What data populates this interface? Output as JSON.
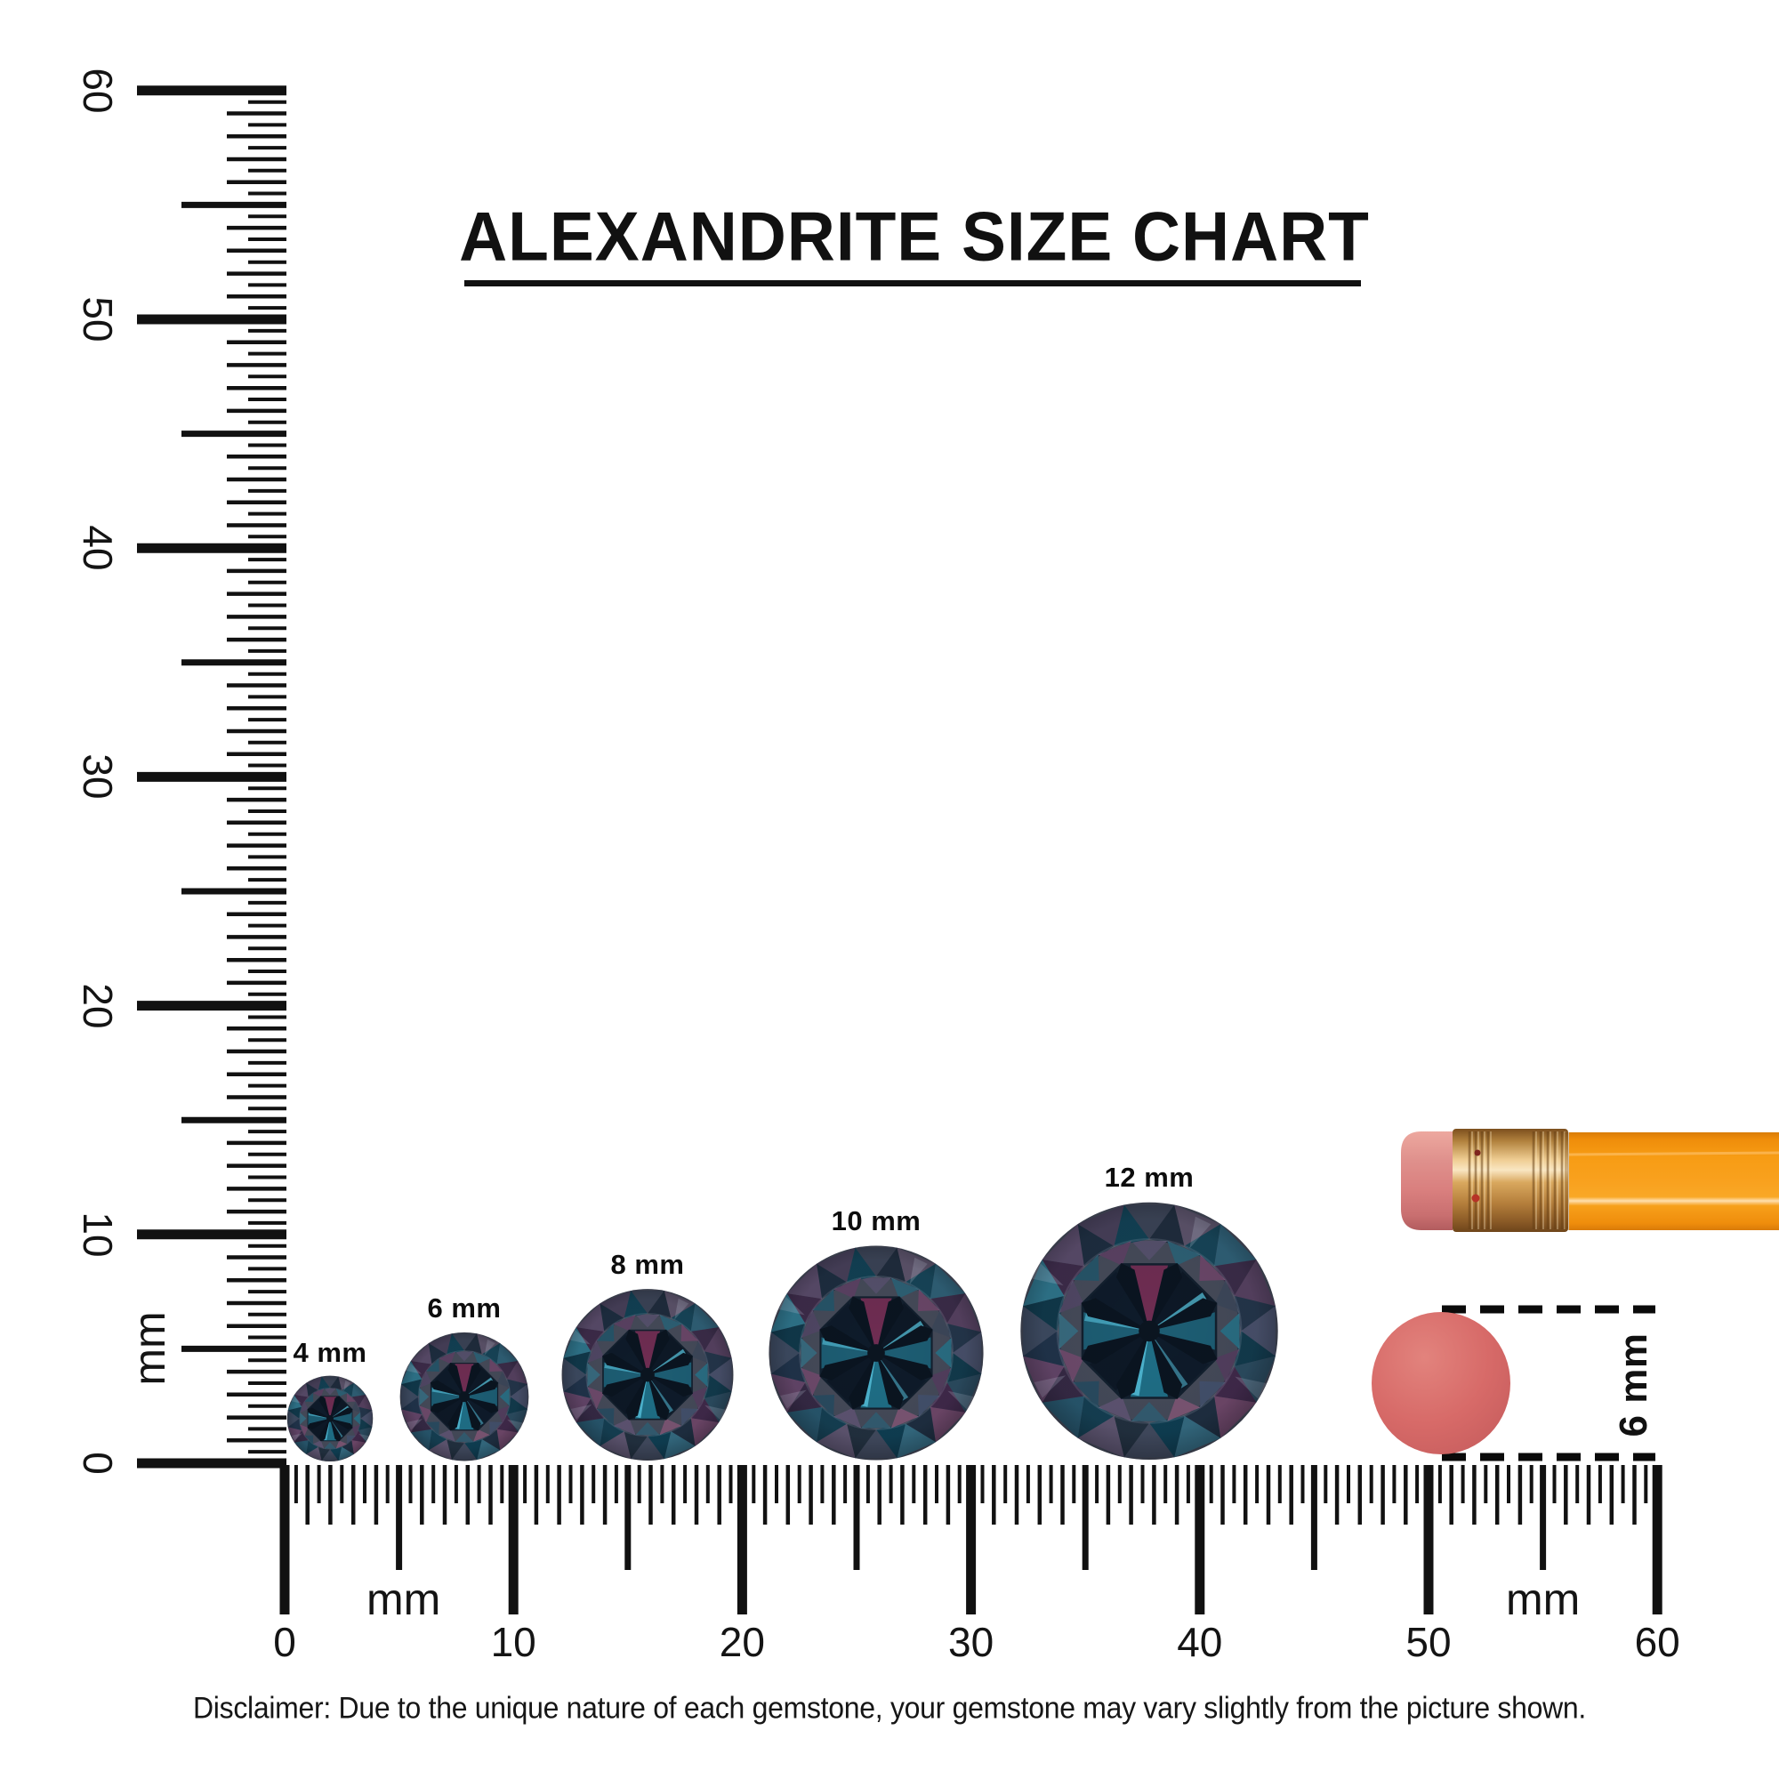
{
  "title": "ALEXANDRITE SIZE CHART",
  "rulers": {
    "left": {
      "tick_labels": [
        "0",
        "10",
        "20",
        "30",
        "40",
        "50",
        "60"
      ],
      "unit": "mm"
    },
    "bottom": {
      "tick_labels": [
        "0",
        "10",
        "20",
        "30",
        "40",
        "50",
        "60"
      ],
      "unit_left": "mm",
      "unit_right": "mm"
    }
  },
  "gems": [
    {
      "label": "4 mm",
      "mm": 4
    },
    {
      "label": "6 mm",
      "mm": 6
    },
    {
      "label": "8 mm",
      "mm": 8
    },
    {
      "label": "10 mm",
      "mm": 10
    },
    {
      "label": "12 mm",
      "mm": 12
    }
  ],
  "comparison": {
    "eraser_label": "6 mm"
  },
  "disclaimer": "Disclaimer: Due to the unique nature of each gemstone, your gemstone may vary slightly from the picture shown.",
  "colors": {
    "ink": "#111111",
    "gem_slate": "#454a59",
    "gem_teal": "#1e6076",
    "gem_cyan": "#55c0da",
    "gem_plum": "#6e2d52",
    "gem_dark": "#0d1826",
    "gem_table": "#13202e",
    "eraser_pink": "#d97f7e",
    "eraser_top_pink": "#d76a68",
    "ferrule_gold": "#d9a85e",
    "pencil_orange": "#f79c14"
  }
}
